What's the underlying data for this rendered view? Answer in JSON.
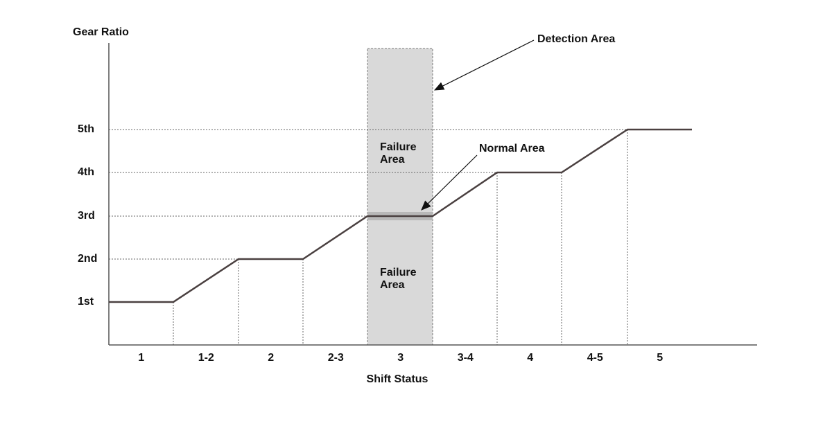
{
  "y_axis_label": "Gear Ratio",
  "x_axis_label": "Shift Status",
  "y_levels": [
    "1st",
    "2nd",
    "3rd",
    "4th",
    "5th"
  ],
  "x_categories": [
    "1",
    "1-2",
    "2",
    "2-3",
    "3",
    "3-4",
    "4",
    "4-5",
    "5"
  ],
  "annotations": {
    "detection": "Detection Area",
    "normal": "Normal Area",
    "failure_upper": [
      "Failure",
      "Area"
    ],
    "failure_lower": [
      "Failure",
      "Area"
    ]
  }
}
